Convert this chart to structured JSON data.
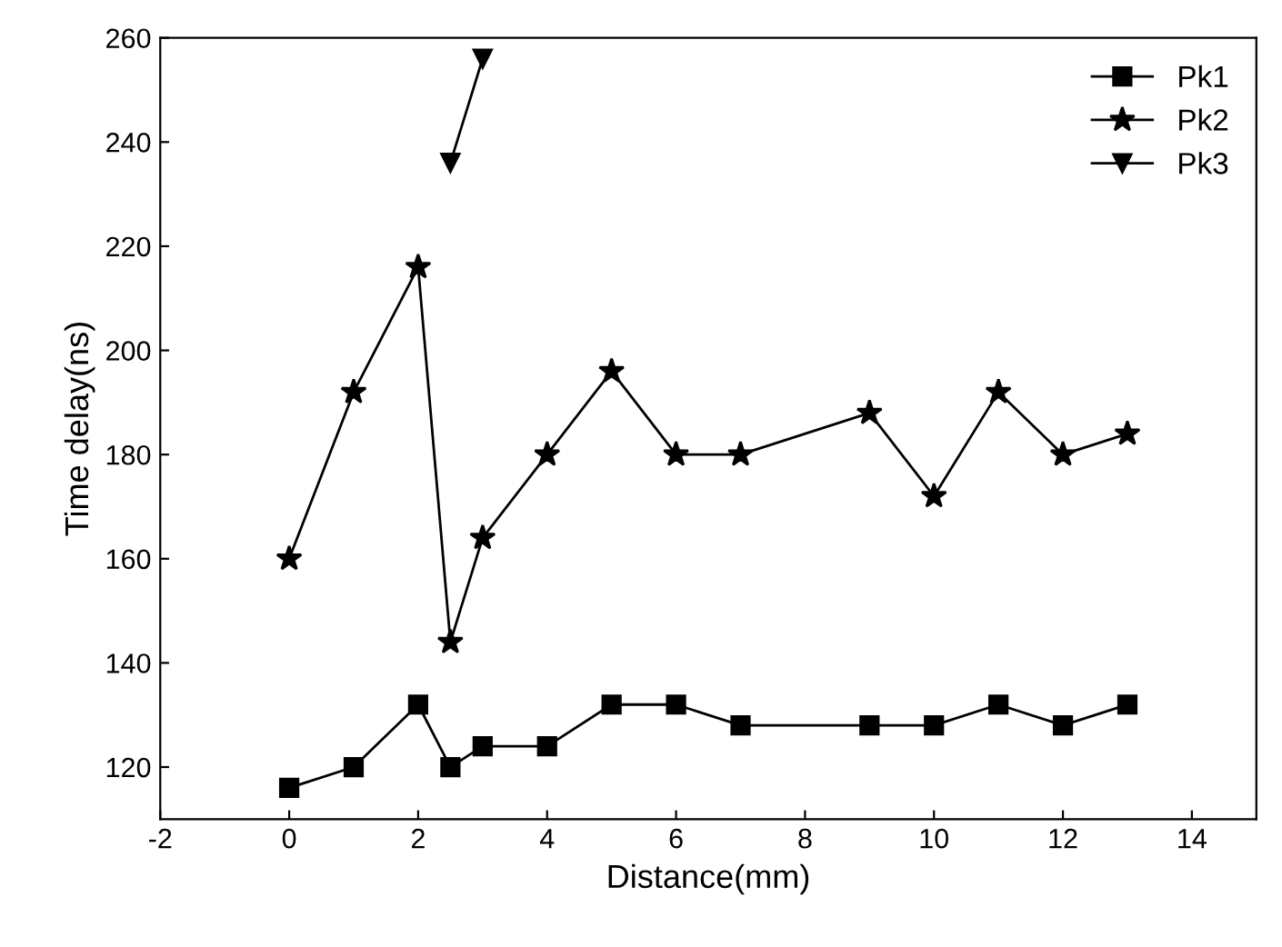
{
  "chart_data": {
    "type": "line",
    "xlabel": "Distance(mm)",
    "ylabel": "Time delay(ns)",
    "xlim": [
      -2,
      15
    ],
    "xticks": [
      -2,
      0,
      2,
      4,
      6,
      8,
      10,
      12,
      14
    ],
    "ylim": [
      110,
      260
    ],
    "yticks": [
      120,
      140,
      160,
      180,
      200,
      220,
      240,
      260
    ],
    "grid": false,
    "legend": "top right",
    "line_style": "solid",
    "series": [
      {
        "name": "Pk1",
        "color": "#000000",
        "marker": "square",
        "x": [
          0,
          1,
          2,
          2.5,
          3,
          4,
          5,
          6,
          7,
          9,
          10,
          11,
          12,
          13
        ],
        "values": [
          116,
          120,
          132,
          120,
          124,
          124,
          132,
          132,
          128,
          128,
          128,
          132,
          128,
          132
        ]
      },
      {
        "name": "Pk2",
        "color": "#000000",
        "marker": "star",
        "x": [
          0,
          1,
          2,
          2.5,
          3,
          4,
          5,
          6,
          7,
          9,
          10,
          11,
          12,
          13
        ],
        "values": [
          160,
          192,
          216,
          144,
          164,
          180,
          196,
          180,
          180,
          188,
          172,
          192,
          180,
          184
        ]
      },
      {
        "name": "Pk3",
        "color": "#000000",
        "marker": "triangle",
        "x": [
          2.5,
          3
        ],
        "values": [
          236,
          256
        ]
      }
    ]
  }
}
